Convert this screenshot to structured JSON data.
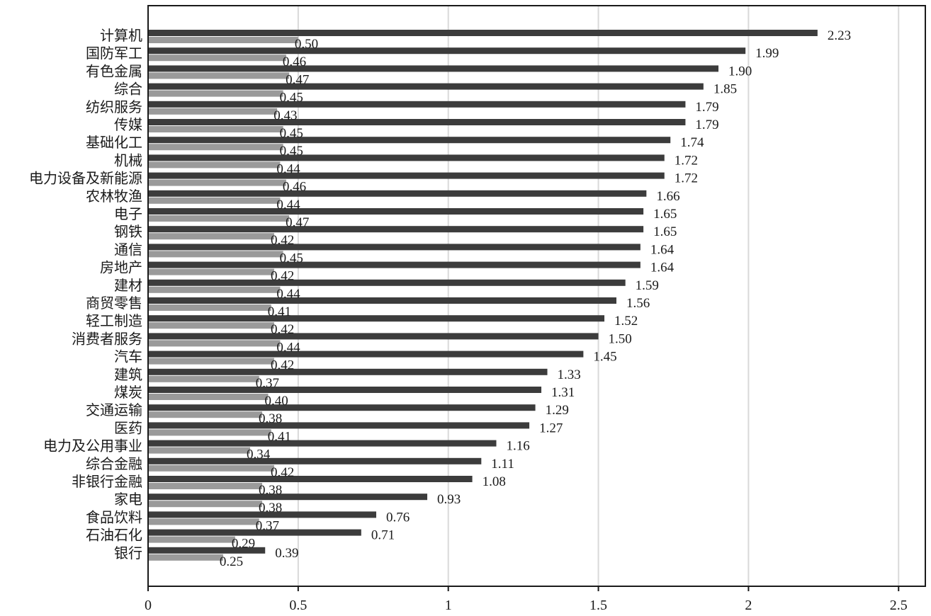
{
  "colors": {
    "series_dark": "#3c3c3c",
    "series_light": "#9a9a9a",
    "gridline": "#d9d9d9",
    "axis": "#1a1a1a"
  },
  "chart_data": {
    "type": "bar",
    "orientation": "horizontal",
    "title": "",
    "xlabel": "",
    "ylabel": "",
    "xlim": [
      0,
      2.6
    ],
    "x_ticks": [
      0,
      0.5,
      1,
      1.5,
      2,
      2.5
    ],
    "x_tick_labels": [
      "0",
      "0.5",
      "1",
      "1.5",
      "2",
      "2.5"
    ],
    "grid": "vertical",
    "legend": "none",
    "categories": [
      "计算机",
      "国防军工",
      "有色金属",
      "综合",
      "纺织服务",
      "传媒",
      "基础化工",
      "机械",
      "电力设备及新能源",
      "农林牧渔",
      "电子",
      "钢铁",
      "通信",
      "房地产",
      "建材",
      "商贸零售",
      "轻工制造",
      "消费者服务",
      "汽车",
      "建筑",
      "煤炭",
      "交通运输",
      "医药",
      "电力及公用事业",
      "综合金融",
      "非银行金融",
      "家电",
      "食品饮料",
      "石油石化",
      "银行"
    ],
    "series": [
      {
        "values": [
          2.23,
          1.99,
          1.9,
          1.85,
          1.79,
          1.79,
          1.74,
          1.72,
          1.72,
          1.66,
          1.65,
          1.65,
          1.64,
          1.64,
          1.59,
          1.56,
          1.52,
          1.5,
          1.45,
          1.33,
          1.31,
          1.29,
          1.27,
          1.16,
          1.11,
          1.08,
          0.93,
          0.76,
          0.71,
          0.39
        ],
        "labels": [
          "2.23",
          "1.99",
          "1.90",
          "1.85",
          "1.79",
          "1.79",
          "1.74",
          "1.72",
          "1.72",
          "1.66",
          "1.65",
          "1.65",
          "1.64",
          "1.64",
          "1.59",
          "1.56",
          "1.52",
          "1.50",
          "1.45",
          "1.33",
          "1.31",
          "1.29",
          "1.27",
          "1.16",
          "1.11",
          "1.08",
          "0.93",
          "0.76",
          "0.71",
          "0.39"
        ]
      },
      {
        "values": [
          0.5,
          0.46,
          0.47,
          0.45,
          0.43,
          0.45,
          0.45,
          0.44,
          0.46,
          0.44,
          0.47,
          0.42,
          0.45,
          0.42,
          0.44,
          0.41,
          0.42,
          0.44,
          0.42,
          0.37,
          0.4,
          0.38,
          0.41,
          0.34,
          0.42,
          0.38,
          0.38,
          0.37,
          0.29,
          0.25
        ],
        "labels": [
          "0.50",
          "0.46",
          "0.47",
          "0.45",
          "0.43",
          "0.45",
          "0.45",
          "0.44",
          "0.46",
          "0.44",
          "0.47",
          "0.42",
          "0.45",
          "0.42",
          "0.44",
          "0.41",
          "0.42",
          "0.44",
          "0.42",
          "0.37",
          "0.40",
          "0.38",
          "0.41",
          "0.34",
          "0.42",
          "0.38",
          "0.38",
          "0.37",
          "0.29",
          "0.25"
        ]
      }
    ]
  }
}
